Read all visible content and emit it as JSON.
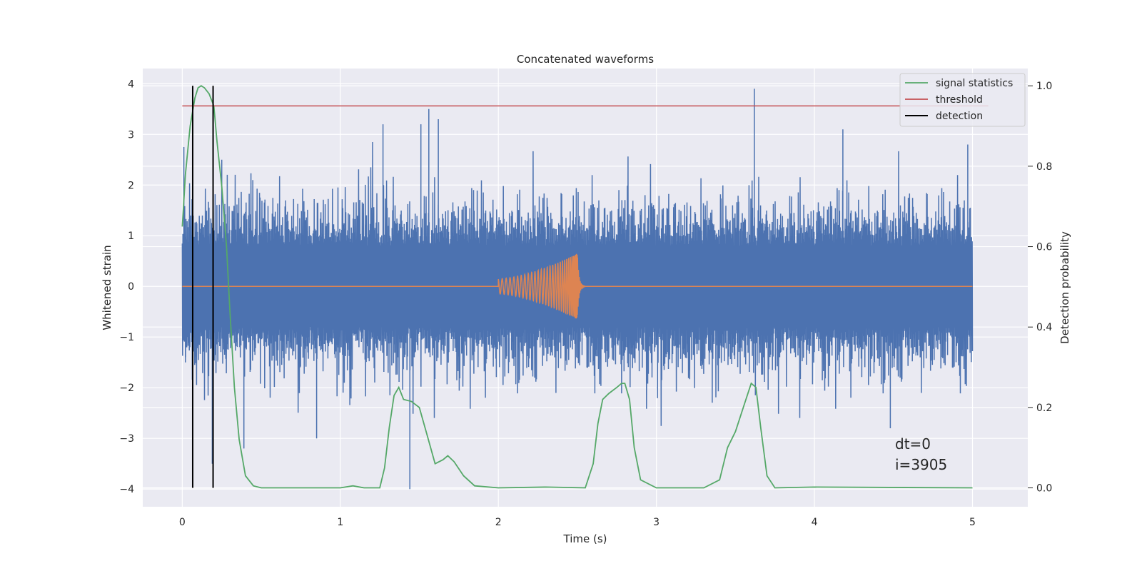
{
  "chart_data": {
    "type": "line",
    "title": "Concatenated waveforms",
    "xlabel": "Time (s)",
    "ylabel": "Whitened strain",
    "y2label": "Detection probability",
    "xlim": [
      -0.25,
      5.35
    ],
    "ylim": [
      -4.35,
      4.3
    ],
    "y2lim": [
      -0.047,
      1.043
    ],
    "xticks": [
      0,
      1,
      2,
      3,
      4,
      5
    ],
    "xtick_labels": [
      "0",
      "1",
      "2",
      "3",
      "4",
      "5"
    ],
    "yticks": [
      -4,
      -3,
      -2,
      -1,
      0,
      1,
      2,
      3,
      4
    ],
    "ytick_labels": [
      "−4",
      "−3",
      "−2",
      "−1",
      "0",
      "1",
      "2",
      "3",
      "4"
    ],
    "y2ticks": [
      0.0,
      0.2,
      0.4,
      0.6,
      0.8,
      1.0
    ],
    "y2tick_labels": [
      "0.0",
      "0.2",
      "0.4",
      "0.6",
      "0.8",
      "1.0"
    ],
    "grid": true,
    "legend_position": "top-right",
    "noise": {
      "x_range": [
        0,
        5
      ],
      "n_samples": 2600,
      "seed": 3905,
      "core_amplitude": 0.8,
      "peaks": [
        {
          "x": 0.01,
          "y": 2.75
        },
        {
          "x": 0.02,
          "y": -1.5
        },
        {
          "x": 0.19,
          "y": -3.5
        },
        {
          "x": 0.25,
          "y": 2.5
        },
        {
          "x": 0.39,
          "y": -3.2
        },
        {
          "x": 0.85,
          "y": -3.0
        },
        {
          "x": 1.27,
          "y": 3.2
        },
        {
          "x": 1.44,
          "y": -4.0
        },
        {
          "x": 1.51,
          "y": 3.2
        },
        {
          "x": 1.56,
          "y": 3.5
        },
        {
          "x": 1.62,
          "y": 3.3
        },
        {
          "x": 2.5,
          "y": 0.6
        },
        {
          "x": 3.62,
          "y": 3.9
        },
        {
          "x": 4.18,
          "y": 3.1
        },
        {
          "x": 4.48,
          "y": -2.8
        },
        {
          "x": 4.97,
          "y": 2.8
        }
      ]
    },
    "chirp": {
      "start": 2.0,
      "merger": 2.5,
      "end": 2.55,
      "start_amplitude": 0.15,
      "peak_amplitude": 0.65,
      "n_cycles": 30
    },
    "series": [
      {
        "name": "signal statistics",
        "axis": "right",
        "color": "#55a868",
        "x": [
          0.0,
          0.02,
          0.05,
          0.08,
          0.1,
          0.12,
          0.14,
          0.17,
          0.2,
          0.22,
          0.25,
          0.28,
          0.3,
          0.33,
          0.36,
          0.4,
          0.45,
          0.5,
          0.8,
          1.0,
          1.08,
          1.15,
          1.25,
          1.28,
          1.31,
          1.34,
          1.37,
          1.4,
          1.45,
          1.5,
          1.55,
          1.6,
          1.65,
          1.68,
          1.72,
          1.78,
          1.85,
          2.0,
          2.3,
          2.55,
          2.6,
          2.63,
          2.66,
          2.7,
          2.75,
          2.78,
          2.8,
          2.83,
          2.86,
          2.9,
          3.0,
          3.3,
          3.4,
          3.45,
          3.5,
          3.55,
          3.6,
          3.63,
          3.66,
          3.7,
          3.75,
          4.0,
          5.0
        ],
        "y": [
          0.65,
          0.78,
          0.9,
          0.97,
          0.995,
          1.0,
          0.995,
          0.98,
          0.95,
          0.86,
          0.75,
          0.6,
          0.45,
          0.25,
          0.12,
          0.03,
          0.005,
          0.0,
          0.0,
          0.0,
          0.005,
          0.0,
          0.0,
          0.05,
          0.15,
          0.23,
          0.25,
          0.22,
          0.215,
          0.2,
          0.13,
          0.06,
          0.07,
          0.08,
          0.065,
          0.03,
          0.005,
          0.0,
          0.002,
          0.0,
          0.06,
          0.16,
          0.22,
          0.235,
          0.25,
          0.26,
          0.26,
          0.22,
          0.1,
          0.02,
          0.0,
          0.0,
          0.02,
          0.1,
          0.14,
          0.2,
          0.26,
          0.25,
          0.15,
          0.03,
          0.0,
          0.002,
          0.0
        ]
      },
      {
        "name": "threshold",
        "axis": "right",
        "color": "#c44e52",
        "x": [
          0.0,
          5.1
        ],
        "y": [
          0.95,
          0.95
        ]
      },
      {
        "name": "detection",
        "axis": "right",
        "color": "#000000",
        "x": [
          0.066,
          0.195
        ],
        "y_range": [
          0.0,
          1.0
        ]
      }
    ],
    "annotations": [
      "dt=0",
      "i=3905"
    ],
    "colors": {
      "noise": "#4c72b0",
      "waveform": "#dd8452",
      "plot_background": "#eaeaf2",
      "grid": "#ffffff"
    }
  }
}
